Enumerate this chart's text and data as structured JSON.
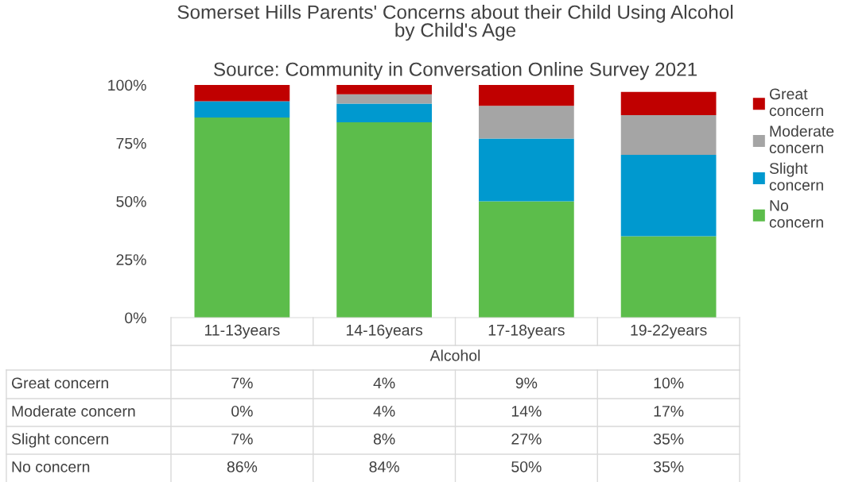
{
  "chart_data": {
    "type": "bar",
    "stacked": true,
    "title": "Somerset Hills Parents' Concerns about their Child Using Alcohol\nby Child's Age",
    "subtitle": "Source: Community in Conversation Online Survey 2021",
    "xlabel": "Alcohol",
    "categories": [
      "11-13years",
      "14-16years",
      "17-18years",
      "19-22years"
    ],
    "series": [
      {
        "name": "No concern",
        "color": "#5cbd4b",
        "values": [
          86,
          84,
          50,
          35
        ],
        "value_labels": [
          "86%",
          "84%",
          "50%",
          "35%"
        ]
      },
      {
        "name": "Slight concern",
        "color": "#0099cf",
        "values": [
          7,
          8,
          27,
          35
        ],
        "value_labels": [
          "7%",
          "8%",
          "27%",
          "35%"
        ]
      },
      {
        "name": "Moderate concern",
        "color": "#a5a5a5",
        "values": [
          0,
          4,
          14,
          17
        ],
        "value_labels": [
          "0%",
          "4%",
          "14%",
          "17%"
        ]
      },
      {
        "name": "Great concern",
        "color": "#c00000",
        "values": [
          7,
          4,
          9,
          10
        ],
        "value_labels": [
          "7%",
          "4%",
          "9%",
          "10%"
        ]
      }
    ],
    "ylim": [
      0,
      100
    ],
    "yticks": [
      {
        "value": 0,
        "label": "0%"
      },
      {
        "value": 25,
        "label": "25%"
      },
      {
        "value": 50,
        "label": "50%"
      },
      {
        "value": 75,
        "label": "75%"
      },
      {
        "value": 100,
        "label": "100%"
      }
    ],
    "legend": "right",
    "grid": false
  }
}
